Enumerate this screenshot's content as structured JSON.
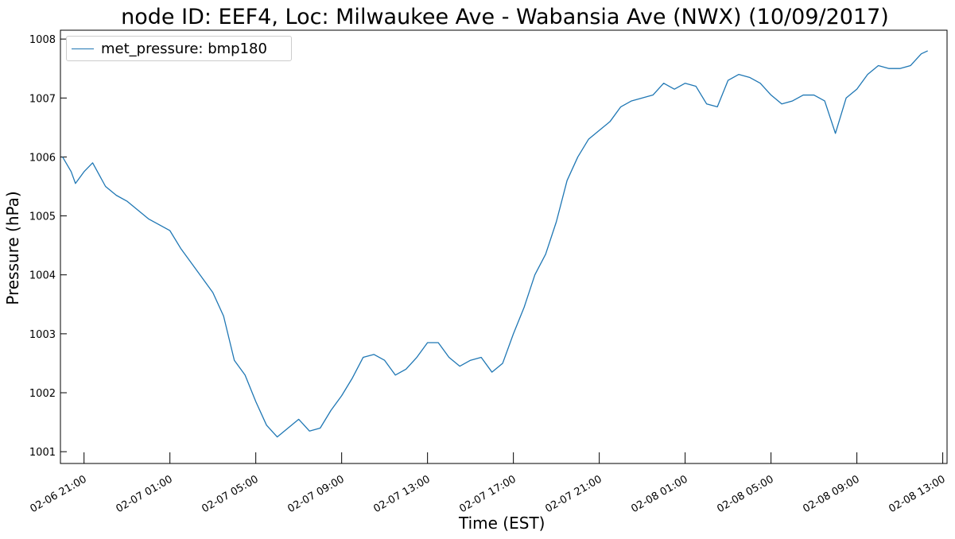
{
  "chart_data": {
    "type": "line",
    "title": "node ID: EEF4, Loc: Milwaukee Ave - Wabansia Ave (NWX) (10/09/2017)",
    "xlabel": "Time (EST)",
    "ylabel": "Pressure (hPa)",
    "x_unit": "hours after 02-06 21:00",
    "xlim": [
      -1.1,
      40.2
    ],
    "ylim": [
      1000.8,
      1008.15
    ],
    "x_ticks": [
      {
        "label": "02-06 21:00",
        "value": 0
      },
      {
        "label": "02-07 01:00",
        "value": 4
      },
      {
        "label": "02-07 05:00",
        "value": 8
      },
      {
        "label": "02-07 09:00",
        "value": 12
      },
      {
        "label": "02-07 13:00",
        "value": 16
      },
      {
        "label": "02-07 17:00",
        "value": 20
      },
      {
        "label": "02-07 21:00",
        "value": 24
      },
      {
        "label": "02-08 01:00",
        "value": 28
      },
      {
        "label": "02-08 05:00",
        "value": 32
      },
      {
        "label": "02-08 09:00",
        "value": 36
      },
      {
        "label": "02-08 13:00",
        "value": 40
      }
    ],
    "y_ticks": [
      1001,
      1002,
      1003,
      1004,
      1005,
      1006,
      1007,
      1008
    ],
    "grid": false,
    "legend_placement": "top-left",
    "color": "#1f77b4",
    "series": [
      {
        "name": "met_pressure: bmp180",
        "points": [
          [
            -1.0,
            1006.0
          ],
          [
            -0.6,
            1005.75
          ],
          [
            -0.4,
            1005.55
          ],
          [
            0.0,
            1005.75
          ],
          [
            0.4,
            1005.9
          ],
          [
            1.0,
            1005.5
          ],
          [
            1.5,
            1005.35
          ],
          [
            2.0,
            1005.25
          ],
          [
            2.5,
            1005.1
          ],
          [
            3.0,
            1004.95
          ],
          [
            3.5,
            1004.85
          ],
          [
            4.0,
            1004.75
          ],
          [
            4.5,
            1004.45
          ],
          [
            5.0,
            1004.2
          ],
          [
            5.5,
            1003.95
          ],
          [
            6.0,
            1003.7
          ],
          [
            6.5,
            1003.3
          ],
          [
            7.0,
            1002.55
          ],
          [
            7.5,
            1002.3
          ],
          [
            8.0,
            1001.85
          ],
          [
            8.5,
            1001.45
          ],
          [
            9.0,
            1001.25
          ],
          [
            9.5,
            1001.4
          ],
          [
            10.0,
            1001.55
          ],
          [
            10.5,
            1001.35
          ],
          [
            11.0,
            1001.4
          ],
          [
            11.5,
            1001.7
          ],
          [
            12.0,
            1001.95
          ],
          [
            12.5,
            1002.25
          ],
          [
            13.0,
            1002.6
          ],
          [
            13.5,
            1002.65
          ],
          [
            14.0,
            1002.55
          ],
          [
            14.5,
            1002.3
          ],
          [
            15.0,
            1002.4
          ],
          [
            15.5,
            1002.6
          ],
          [
            16.0,
            1002.85
          ],
          [
            16.5,
            1002.85
          ],
          [
            17.0,
            1002.6
          ],
          [
            17.5,
            1002.45
          ],
          [
            18.0,
            1002.55
          ],
          [
            18.5,
            1002.6
          ],
          [
            19.0,
            1002.35
          ],
          [
            19.5,
            1002.5
          ],
          [
            20.0,
            1003.0
          ],
          [
            20.5,
            1003.45
          ],
          [
            21.0,
            1004.0
          ],
          [
            21.5,
            1004.35
          ],
          [
            22.0,
            1004.9
          ],
          [
            22.5,
            1005.6
          ],
          [
            23.0,
            1006.0
          ],
          [
            23.5,
            1006.3
          ],
          [
            24.0,
            1006.45
          ],
          [
            24.5,
            1006.6
          ],
          [
            25.0,
            1006.85
          ],
          [
            25.5,
            1006.95
          ],
          [
            26.0,
            1007.0
          ],
          [
            26.5,
            1007.05
          ],
          [
            27.0,
            1007.25
          ],
          [
            27.5,
            1007.15
          ],
          [
            28.0,
            1007.25
          ],
          [
            28.5,
            1007.2
          ],
          [
            29.0,
            1006.9
          ],
          [
            29.5,
            1006.85
          ],
          [
            30.0,
            1007.3
          ],
          [
            30.5,
            1007.4
          ],
          [
            31.0,
            1007.35
          ],
          [
            31.5,
            1007.25
          ],
          [
            32.0,
            1007.05
          ],
          [
            32.5,
            1006.9
          ],
          [
            33.0,
            1006.95
          ],
          [
            33.5,
            1007.05
          ],
          [
            34.0,
            1007.05
          ],
          [
            34.5,
            1006.95
          ],
          [
            35.0,
            1006.4
          ],
          [
            35.5,
            1007.0
          ],
          [
            36.0,
            1007.15
          ],
          [
            36.5,
            1007.4
          ],
          [
            37.0,
            1007.55
          ],
          [
            37.5,
            1007.5
          ],
          [
            38.0,
            1007.5
          ],
          [
            38.5,
            1007.55
          ],
          [
            39.0,
            1007.75
          ],
          [
            39.3,
            1007.8
          ]
        ]
      }
    ]
  }
}
